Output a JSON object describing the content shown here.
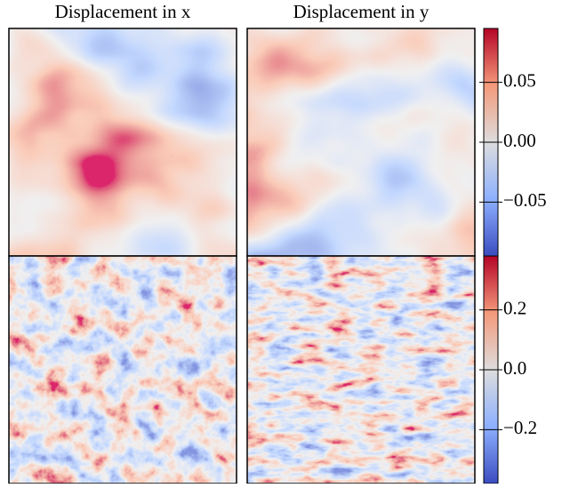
{
  "chart_data": [
    {
      "type": "heatmap",
      "titles": [
        "Displacement in x",
        "Displacement in y"
      ],
      "zlim": [
        -0.095,
        0.095
      ],
      "zticks": [
        {
          "value": -0.05,
          "label": "−0.05"
        },
        {
          "value": 0,
          "label": "0.00"
        },
        0.05
      ]
    },
    {
      "type": "heatmap",
      "zlim": [
        -0.38,
        0.38
      ],
      "zticks": [
        {
          "value": -0.2,
          "label": "−0.2"
        },
        {
          "value": 0,
          "label": "0.0"
        },
        0.2
      ]
    }
  ]
}
